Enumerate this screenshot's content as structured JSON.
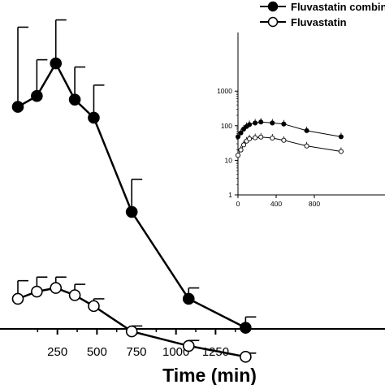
{
  "chart_data": [
    {
      "type": "line",
      "xlabel": "Time (min)",
      "ylabel": "",
      "xlim": [
        0,
        1300
      ],
      "x_ticks": [
        250,
        500,
        750,
        1000,
        1250
      ],
      "series": [
        {
          "name": "Fluvastatin combination",
          "marker": "filled-circle",
          "color": "#000000",
          "x": [
            0,
            120,
            240,
            360,
            480,
            720,
            1080,
            1440
          ],
          "y": [
            77,
            80,
            89,
            79,
            74,
            48,
            24,
            16
          ],
          "error": [
            22,
            10,
            12,
            9,
            9,
            9,
            3,
            3
          ]
        },
        {
          "name": "Fluvastatin",
          "marker": "open-circle",
          "color": "#000000",
          "x": [
            0,
            120,
            240,
            360,
            480,
            720,
            1080,
            1440
          ],
          "y": [
            24,
            26,
            27,
            25,
            22,
            15,
            11,
            8
          ],
          "error": [
            5,
            4,
            3,
            3,
            2,
            1.5,
            1.5,
            1
          ]
        }
      ]
    },
    {
      "type": "line",
      "inset": true,
      "y_scale": "log",
      "xlim": [
        0,
        1300
      ],
      "ylim": [
        1,
        1000
      ],
      "x_ticks": [
        0,
        400,
        800
      ],
      "y_ticks": [
        1,
        10,
        100,
        1000
      ],
      "series": [
        {
          "name": "Fluvastatin combination",
          "marker": "filled-circle",
          "x": [
            0,
            30,
            60,
            90,
            120,
            180,
            240,
            360,
            480,
            720,
            1080
          ],
          "y": [
            48,
            62,
            80,
            95,
            108,
            120,
            128,
            120,
            112,
            72,
            48
          ]
        },
        {
          "name": "Fluvastatin",
          "marker": "open-circle",
          "x": [
            0,
            30,
            60,
            90,
            120,
            180,
            240,
            360,
            480,
            720,
            1080
          ],
          "y": [
            14,
            20,
            28,
            36,
            42,
            45,
            47,
            44,
            38,
            26,
            18
          ]
        }
      ]
    }
  ]
}
